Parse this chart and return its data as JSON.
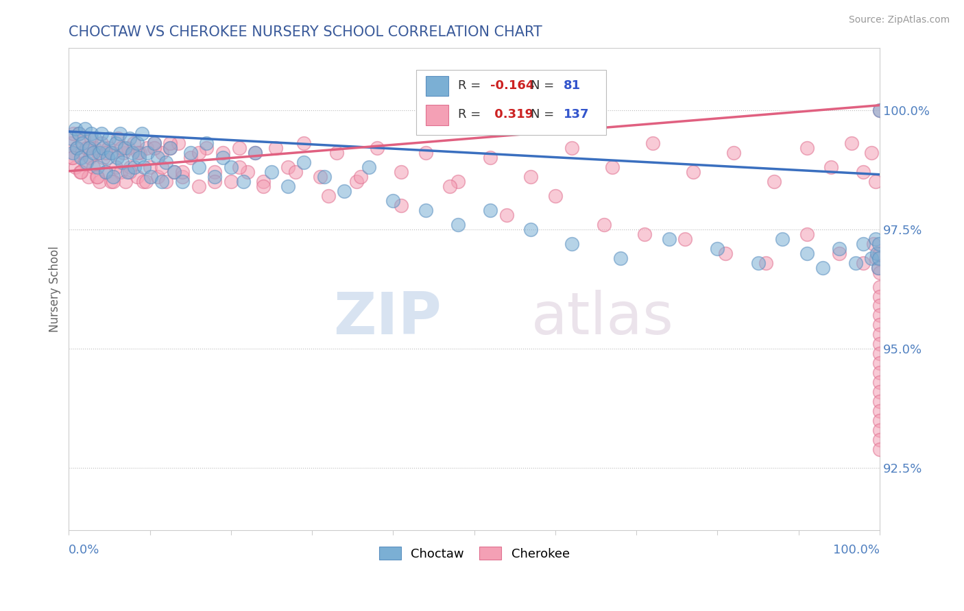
{
  "title": "CHOCTAW VS CHEROKEE NURSERY SCHOOL CORRELATION CHART",
  "source_text": "Source: ZipAtlas.com",
  "ylabel": "Nursery School",
  "ytick_labels": [
    "92.5%",
    "95.0%",
    "97.5%",
    "100.0%"
  ],
  "ytick_values": [
    92.5,
    95.0,
    97.5,
    100.0
  ],
  "xmin": 0.0,
  "xmax": 100.0,
  "ymin": 91.2,
  "ymax": 101.3,
  "choctaw_color": "#7BAFD4",
  "cherokee_color": "#F4A0B5",
  "choctaw_edge_color": "#5A8FC0",
  "cherokee_edge_color": "#E07090",
  "choctaw_line_color": "#3A6FBF",
  "cherokee_line_color": "#E06080",
  "legend_r_choctaw": "-0.164",
  "legend_n_choctaw": "81",
  "legend_r_cherokee": "0.319",
  "legend_n_cherokee": "137",
  "title_color": "#3A5A9A",
  "tick_color": "#5080C0",
  "watermark_zip": "ZIP",
  "watermark_atlas": "atlas",
  "blue_trend_x": [
    0,
    100
  ],
  "blue_trend_y": [
    99.55,
    98.65
  ],
  "pink_trend_x": [
    0,
    100
  ],
  "pink_trend_y": [
    98.72,
    100.1
  ],
  "choctaw_x": [
    0.3,
    0.5,
    0.8,
    1.0,
    1.2,
    1.5,
    1.7,
    2.0,
    2.2,
    2.5,
    2.8,
    3.0,
    3.2,
    3.5,
    3.8,
    4.0,
    4.2,
    4.5,
    4.8,
    5.0,
    5.2,
    5.5,
    5.8,
    6.0,
    6.3,
    6.6,
    6.9,
    7.2,
    7.5,
    7.8,
    8.1,
    8.4,
    8.7,
    9.0,
    9.3,
    9.7,
    10.1,
    10.5,
    11.0,
    11.5,
    12.0,
    12.5,
    13.0,
    14.0,
    15.0,
    16.0,
    17.0,
    18.0,
    19.0,
    20.0,
    21.5,
    23.0,
    25.0,
    27.0,
    29.0,
    31.5,
    34.0,
    37.0,
    40.0,
    44.0,
    48.0,
    52.0,
    57.0,
    62.0,
    68.0,
    74.0,
    80.0,
    85.0,
    88.0,
    91.0,
    93.0,
    95.0,
    97.0,
    98.0,
    99.0,
    99.5,
    99.7,
    99.8,
    99.9,
    99.95,
    100.0
  ],
  "choctaw_y": [
    99.4,
    99.1,
    99.6,
    99.2,
    99.5,
    99.0,
    99.3,
    99.6,
    98.9,
    99.2,
    99.5,
    99.1,
    99.4,
    98.8,
    99.1,
    99.5,
    99.2,
    98.7,
    99.0,
    99.4,
    99.1,
    98.6,
    99.3,
    99.0,
    99.5,
    98.9,
    99.2,
    98.7,
    99.4,
    99.1,
    98.8,
    99.3,
    99.0,
    99.5,
    98.8,
    99.1,
    98.6,
    99.3,
    99.0,
    98.5,
    98.9,
    99.2,
    98.7,
    98.5,
    99.1,
    98.8,
    99.3,
    98.6,
    99.0,
    98.8,
    98.5,
    99.1,
    98.7,
    98.4,
    98.9,
    98.6,
    98.3,
    98.8,
    98.1,
    97.9,
    97.6,
    97.9,
    97.5,
    97.2,
    96.9,
    97.3,
    97.1,
    96.8,
    97.3,
    97.0,
    96.7,
    97.1,
    96.8,
    97.2,
    96.9,
    97.3,
    97.0,
    96.7,
    97.2,
    96.9,
    100.0
  ],
  "cherokee_x": [
    0.2,
    0.4,
    0.6,
    0.8,
    1.0,
    1.2,
    1.4,
    1.6,
    1.8,
    2.0,
    2.2,
    2.4,
    2.6,
    2.8,
    3.0,
    3.2,
    3.4,
    3.6,
    3.8,
    4.0,
    4.3,
    4.6,
    4.9,
    5.2,
    5.5,
    5.8,
    6.1,
    6.4,
    6.7,
    7.0,
    7.3,
    7.6,
    8.0,
    8.4,
    8.8,
    9.2,
    9.6,
    10.0,
    10.5,
    11.0,
    11.5,
    12.0,
    12.5,
    13.0,
    13.5,
    14.0,
    15.0,
    16.0,
    17.0,
    18.0,
    19.0,
    20.0,
    21.0,
    22.0,
    23.0,
    24.0,
    25.5,
    27.0,
    29.0,
    31.0,
    33.0,
    35.5,
    38.0,
    41.0,
    44.0,
    48.0,
    52.0,
    57.0,
    62.0,
    67.0,
    72.0,
    77.0,
    82.0,
    87.0,
    91.0,
    94.0,
    96.5,
    98.0,
    99.0,
    99.5,
    100.0,
    0.5,
    1.5,
    2.5,
    3.5,
    4.5,
    5.5,
    6.5,
    7.5,
    8.5,
    9.5,
    10.5,
    11.5,
    12.5,
    14.0,
    16.0,
    18.0,
    21.0,
    24.0,
    28.0,
    32.0,
    36.0,
    41.0,
    47.0,
    54.0,
    60.0,
    66.0,
    71.0,
    76.0,
    81.0,
    86.0,
    91.0,
    95.0,
    98.0,
    99.2,
    99.6,
    99.8,
    100.0,
    100.0,
    100.0,
    100.0,
    100.0,
    100.0,
    100.0,
    100.0,
    100.0,
    100.0,
    100.0,
    100.0,
    100.0,
    100.0,
    100.0,
    100.0,
    100.0,
    100.0,
    100.0,
    100.0
  ],
  "cherokee_y": [
    99.3,
    99.0,
    99.5,
    98.8,
    99.2,
    99.5,
    98.7,
    99.1,
    99.4,
    98.9,
    99.2,
    98.6,
    99.0,
    99.4,
    98.8,
    99.2,
    98.6,
    99.1,
    98.5,
    99.3,
    99.0,
    98.7,
    99.2,
    98.5,
    99.1,
    98.8,
    99.4,
    98.7,
    99.1,
    98.5,
    99.2,
    98.8,
    99.3,
    98.6,
    99.1,
    98.5,
    99.2,
    98.8,
    99.3,
    98.6,
    99.1,
    98.5,
    99.2,
    98.7,
    99.3,
    98.6,
    99.0,
    98.4,
    99.2,
    98.7,
    99.1,
    98.5,
    99.2,
    98.7,
    99.1,
    98.5,
    99.2,
    98.8,
    99.3,
    98.6,
    99.1,
    98.5,
    99.2,
    98.7,
    99.1,
    98.5,
    99.0,
    98.6,
    99.2,
    98.8,
    99.3,
    98.7,
    99.1,
    98.5,
    99.2,
    98.8,
    99.3,
    98.7,
    99.1,
    98.5,
    100.0,
    99.0,
    98.7,
    99.2,
    98.6,
    99.1,
    98.5,
    99.2,
    98.7,
    99.1,
    98.5,
    99.2,
    98.8,
    99.3,
    98.7,
    99.1,
    98.5,
    98.8,
    98.4,
    98.7,
    98.2,
    98.6,
    98.0,
    98.4,
    97.8,
    98.2,
    97.6,
    97.4,
    97.3,
    97.0,
    96.8,
    97.4,
    97.0,
    96.8,
    97.2,
    96.9,
    96.7,
    97.0,
    96.6,
    96.3,
    96.1,
    95.9,
    95.7,
    95.5,
    95.3,
    95.1,
    94.9,
    94.7,
    94.5,
    94.3,
    94.1,
    93.9,
    93.7,
    93.5,
    93.3,
    93.1,
    92.9
  ]
}
